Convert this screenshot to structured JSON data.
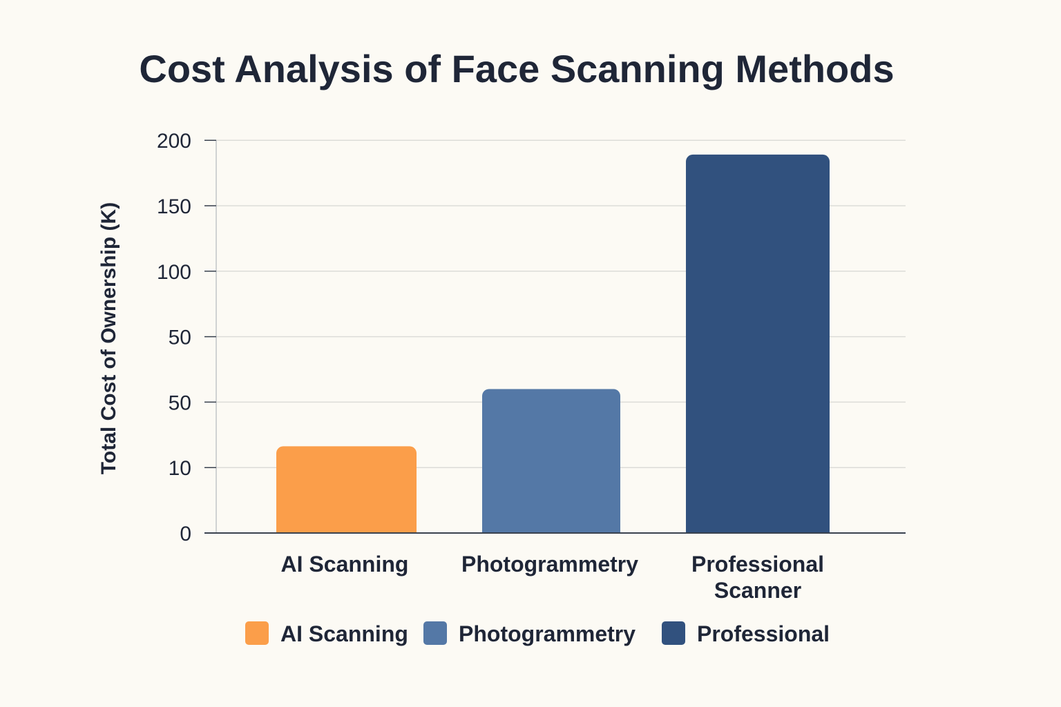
{
  "chart_data": {
    "type": "bar",
    "title": "Cost Analysis of Face Scanning Methods",
    "ylabel": "Total Cost of Ownership (K)",
    "xlabel": "",
    "categories": [
      "AI Scanning",
      "Photogrammetry",
      "Professional Scanner"
    ],
    "category_lines": [
      [
        "AI Scanning"
      ],
      [
        "Photogrammetry"
      ],
      [
        "Professional",
        "Scanner"
      ]
    ],
    "values": [
      23,
      55,
      189
    ],
    "colors": [
      "#fb9e4a",
      "#5478a6",
      "#31517e"
    ],
    "y_ticks": [
      "0",
      "10",
      "50",
      "50",
      "100",
      "150",
      "200"
    ],
    "legend": [
      {
        "label": "AI Scanning",
        "color": "#fb9e4a"
      },
      {
        "label": "Photogrammetry",
        "color": "#5478a6"
      },
      {
        "label": "Professional",
        "color": "#31517e"
      }
    ],
    "legend_position": "bottom",
    "grid": true
  }
}
